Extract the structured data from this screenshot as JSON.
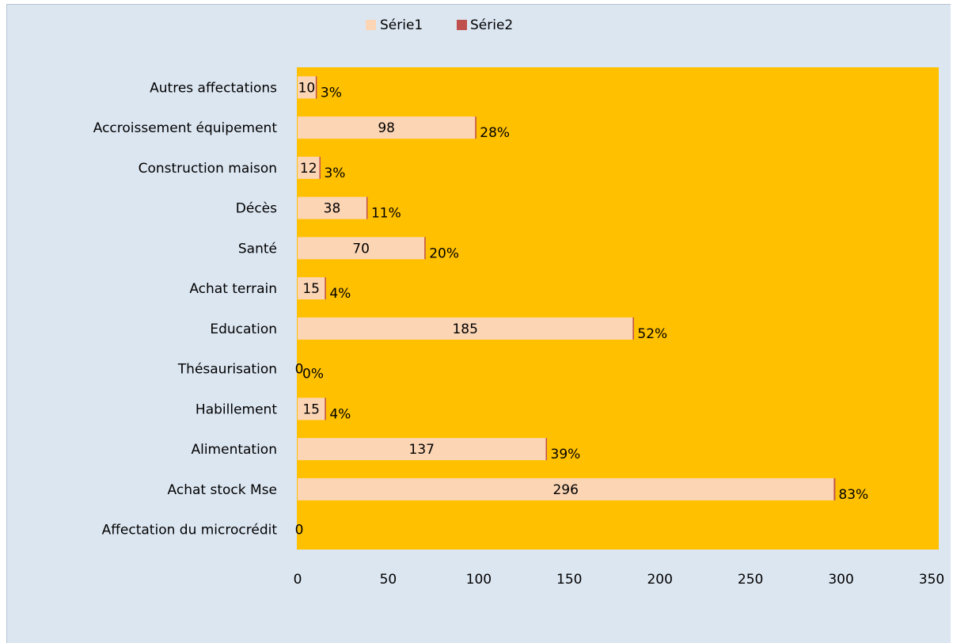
{
  "chart_data": {
    "type": "bar",
    "orientation": "horizontal",
    "categories": [
      "Affectation du microcrédit",
      "Achat stock Mse",
      "Alimentation",
      "Habillement",
      "Thésaurisation",
      "Education",
      "Achat terrain",
      "Santé",
      "Décès",
      "Construction maison",
      "Accroissement équipement",
      "Autres affectations"
    ],
    "series": [
      {
        "name": "Série1",
        "values": [
          0,
          296,
          137,
          15,
          0,
          185,
          15,
          70,
          38,
          12,
          98,
          10
        ],
        "labels": [
          "0",
          "296",
          "137",
          "15",
          "0",
          "185",
          "15",
          "70",
          "38",
          "12",
          "98",
          "10"
        ]
      },
      {
        "name": "Série2",
        "values": [
          null,
          0.83,
          0.39,
          0.04,
          0,
          0.52,
          0.04,
          0.2,
          0.11,
          0.03,
          0.28,
          0.03
        ],
        "labels": [
          "",
          "83%",
          "39%",
          "4%",
          "0%",
          "52%",
          "4%",
          "20%",
          "11%",
          "3%",
          "28%",
          "3%"
        ]
      }
    ],
    "xlim": [
      0,
      350
    ],
    "xticks": [
      "0",
      "50",
      "100",
      "150",
      "200",
      "250",
      "300",
      "350"
    ],
    "legend_position": "top",
    "grid": false,
    "colors": {
      "plot_background": "#ffc000",
      "chart_background": "#dce6f1",
      "series1": "#fcd5b5",
      "series2": "#c0504d"
    }
  }
}
